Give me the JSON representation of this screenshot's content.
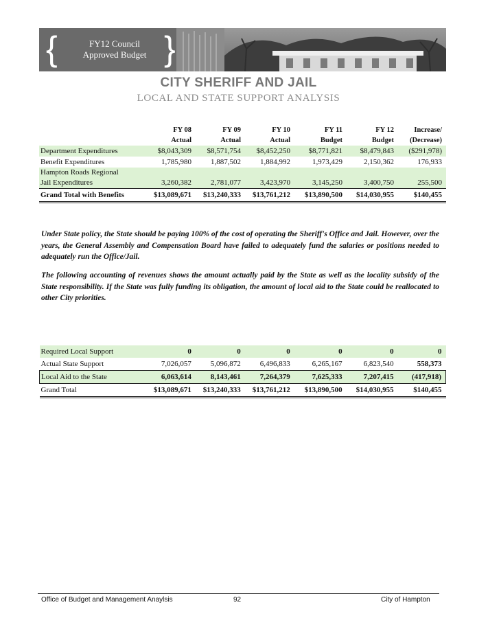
{
  "banner": {
    "line1": "FY12 Council",
    "line2": "Approved Budget"
  },
  "title": "CITY SHERIFF AND JAIL",
  "subtitle": "LOCAL AND STATE SUPPORT ANALYSIS",
  "table1": {
    "headers": [
      {
        "l1": "FY 08",
        "l2": "Actual"
      },
      {
        "l1": "FY 09",
        "l2": "Actual"
      },
      {
        "l1": "FY 10",
        "l2": "Actual"
      },
      {
        "l1": "FY 11",
        "l2": "Budget"
      },
      {
        "l1": "FY 12",
        "l2": "Budget"
      },
      {
        "l1": "Increase/",
        "l2": "(Decrease)"
      }
    ],
    "rows": [
      {
        "label": "Department Expenditures",
        "values": [
          "$8,043,309",
          "$8,571,754",
          "$8,452,250",
          "$8,771,821",
          "$8,479,843",
          "($291,978)"
        ]
      },
      {
        "label": "Benefit Expenditures",
        "values": [
          "1,785,980",
          "1,887,502",
          "1,884,992",
          "1,973,429",
          "2,150,362",
          "176,933"
        ]
      },
      {
        "label": "Hampton Roads Regional",
        "label2": "Jail Expenditures",
        "values": [
          "3,260,382",
          "2,781,077",
          "3,423,970",
          "3,145,250",
          "3,400,750",
          "255,500"
        ]
      },
      {
        "label": "Grand Total with Benefits",
        "values": [
          "$13,089,671",
          "$13,240,333",
          "$13,761,212",
          "$13,890,500",
          "$14,030,955",
          "$140,455"
        ]
      }
    ]
  },
  "paragraphs": [
    "Under State policy, the State should be paying 100% of the cost of operating the Sheriff's Office and Jail. However, over the years, the General Assembly and Compensation Board have failed to adequately fund the salaries or positions needed to adequately run the Office/Jail.",
    "The following accounting of revenues shows the amount actually paid by the State as well as the locality subsidy of the State responsibility. If the State was fully funding its obligation, the amount of local aid to the State could be reallocated to other City priorities."
  ],
  "table2": {
    "rows": [
      {
        "label": "Required Local Support",
        "values": [
          "0",
          "0",
          "0",
          "0",
          "0",
          "0"
        ]
      },
      {
        "label": "Actual State Support",
        "values": [
          "7,026,057",
          "5,096,872",
          "6,496,833",
          "6,265,167",
          "6,823,540",
          "558,373"
        ]
      },
      {
        "label": "Local Aid to the State",
        "values": [
          "6,063,614",
          "8,143,461",
          "7,264,379",
          "7,625,333",
          "7,207,415",
          "(417,918)"
        ]
      },
      {
        "label": "Grand Total",
        "values": [
          "$13,089,671",
          "$13,240,333",
          "$13,761,212",
          "$13,890,500",
          "$14,030,955",
          "$140,455"
        ]
      }
    ]
  },
  "footer": {
    "left": "Office of Budget and Management Anaylsis",
    "page": "92",
    "right": "City of Hampton"
  }
}
